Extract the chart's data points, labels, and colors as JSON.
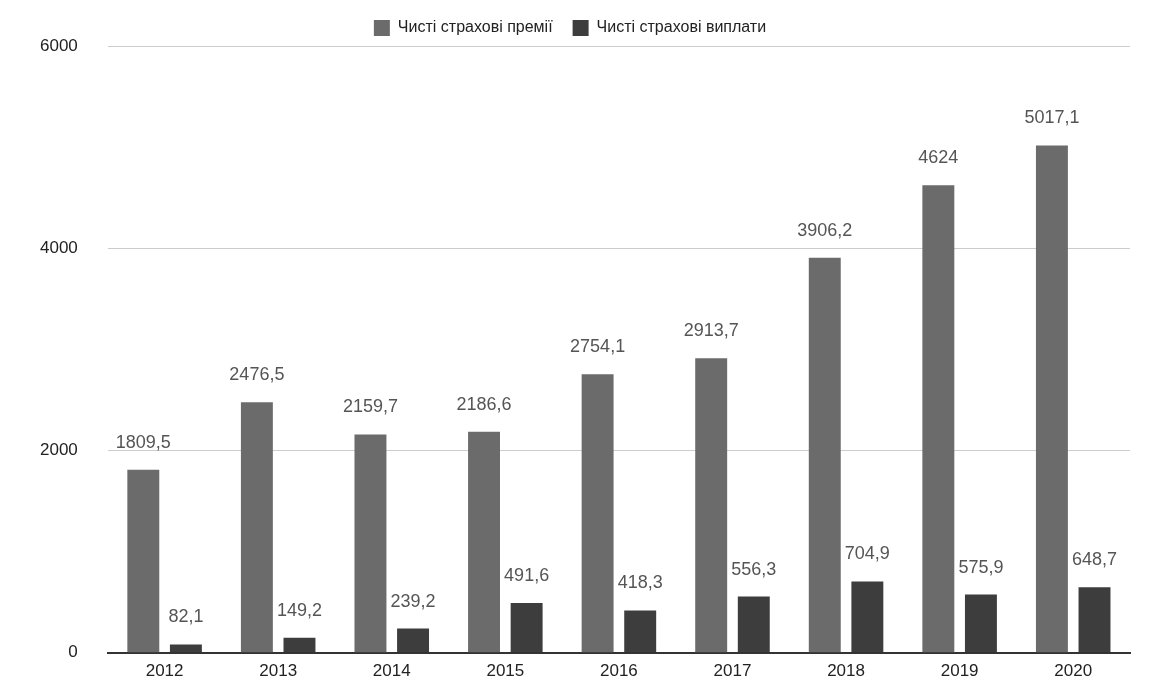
{
  "chart_data": {
    "type": "bar",
    "categories": [
      "2012",
      "2013",
      "2014",
      "2015",
      "2016",
      "2017",
      "2018",
      "2019",
      "2020"
    ],
    "series": [
      {
        "name": "Чисті страхові премії",
        "color": "#6b6b6b",
        "values": [
          1809.5,
          2476.5,
          2159.7,
          2186.6,
          2754.1,
          2913.7,
          3906.2,
          4624,
          5017.1
        ],
        "value_labels": [
          "1809,5",
          "2476,5",
          "2159,7",
          "2186,6",
          "2754,1",
          "2913,7",
          "3906,2",
          "4624",
          "5017,1"
        ]
      },
      {
        "name": "Чисті страхові виплати",
        "color": "#3d3d3d",
        "values": [
          82.1,
          149.2,
          239.2,
          491.6,
          418.3,
          556.3,
          704.9,
          575.9,
          648.7
        ],
        "value_labels": [
          "82,1",
          "149,2",
          "239,2",
          "491,6",
          "418,3",
          "556,3",
          "704,9",
          "575,9",
          "648,7"
        ]
      }
    ],
    "ylim": [
      0,
      6000
    ],
    "yticks": [
      0,
      2000,
      4000,
      6000
    ],
    "grid": "y",
    "legend": "top"
  }
}
